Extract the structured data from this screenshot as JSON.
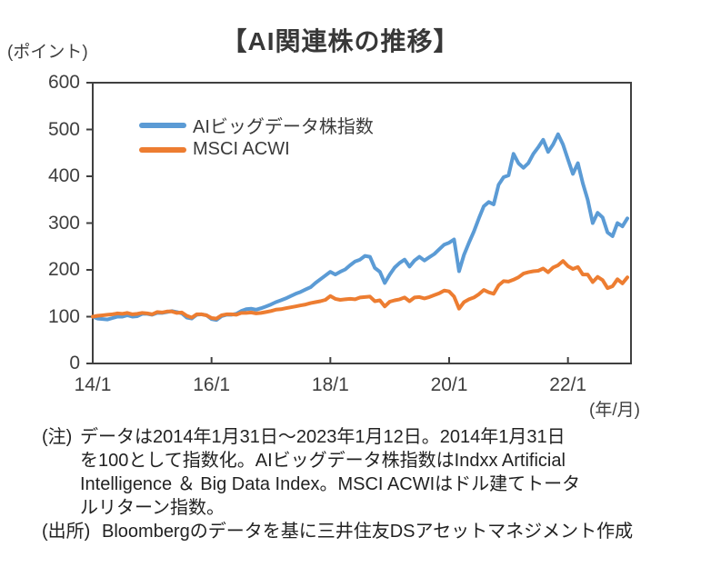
{
  "page": {
    "title": "【AI関連株の推移】",
    "y_unit": "(ポイント)",
    "x_unit": "(年/月)"
  },
  "notes": {
    "note_label": "(注)",
    "note_lines": [
      "データは2014年1月31日～2023年1月12日。2014年1月31日",
      "を100として指数化。AIビッグデータ株指数はIndxx Artificial",
      "Intelligence ＆ Big Data Index。MSCI ACWIはドル建てトータ",
      "ルリターン指数。"
    ],
    "source_label": "(出所)",
    "source_text": "Bloombergのデータを基に三井住友DSアセットマネジメント作成"
  },
  "chart_data": {
    "type": "line",
    "title": "【AI関連株の推移】",
    "ylabel": "(ポイント)",
    "xlabel": "(年/月)",
    "ylim": [
      0,
      600
    ],
    "yticks": [
      0,
      100,
      200,
      300,
      400,
      500,
      600
    ],
    "grid": false,
    "legend_position": "upper-left-inside",
    "x_start": "2014/01",
    "x_end": "2023/01",
    "x_interval": "monthly",
    "xticks": [
      {
        "label": "14/1",
        "month": 0
      },
      {
        "label": "16/1",
        "month": 24
      },
      {
        "label": "18/1",
        "month": 48
      },
      {
        "label": "20/1",
        "month": 72
      },
      {
        "label": "22/1",
        "month": 96
      }
    ],
    "series": [
      {
        "name": "AIビッグデータ株指数",
        "color": "#5B9BD5",
        "values": [
          100,
          96,
          95,
          94,
          97,
          100,
          100,
          103,
          100,
          101,
          106,
          106,
          104,
          108,
          108,
          110,
          112,
          110,
          107,
          98,
          96,
          104,
          105,
          103,
          95,
          93,
          101,
          104,
          104,
          106,
          112,
          116,
          117,
          115,
          118,
          122,
          126,
          131,
          135,
          139,
          144,
          149,
          153,
          158,
          163,
          172,
          180,
          188,
          196,
          190,
          196,
          201,
          210,
          218,
          222,
          230,
          228,
          204,
          196,
          172,
          190,
          205,
          215,
          222,
          207,
          220,
          228,
          220,
          227,
          234,
          244,
          254,
          258,
          265,
          197,
          232,
          258,
          282,
          310,
          336,
          345,
          340,
          382,
          398,
          402,
          448,
          428,
          418,
          428,
          448,
          462,
          478,
          452,
          468,
          490,
          468,
          436,
          405,
          428,
          385,
          350,
          300,
          322,
          312,
          280,
          272,
          300,
          293,
          310
        ]
      },
      {
        "name": "MSCI ACWI",
        "color": "#ED7D31",
        "values": [
          100,
          102,
          103,
          104,
          105,
          107,
          106,
          108,
          105,
          106,
          108,
          107,
          105,
          110,
          109,
          111,
          111,
          108,
          109,
          102,
          98,
          105,
          105,
          103,
          97,
          96,
          103,
          105,
          105,
          104,
          108,
          108,
          109,
          107,
          108,
          110,
          112,
          115,
          116,
          118,
          120,
          122,
          124,
          126,
          129,
          131,
          133,
          136,
          144,
          138,
          136,
          137,
          138,
          137,
          141,
          142,
          143,
          133,
          135,
          122,
          132,
          135,
          137,
          141,
          133,
          141,
          142,
          139,
          142,
          146,
          150,
          156,
          154,
          143,
          117,
          131,
          137,
          141,
          148,
          157,
          152,
          149,
          167,
          176,
          175,
          179,
          184,
          192,
          195,
          197,
          198,
          203,
          195,
          205,
          210,
          219,
          208,
          202,
          206,
          190,
          190,
          174,
          185,
          178,
          161,
          165,
          180,
          171,
          184
        ]
      }
    ]
  }
}
